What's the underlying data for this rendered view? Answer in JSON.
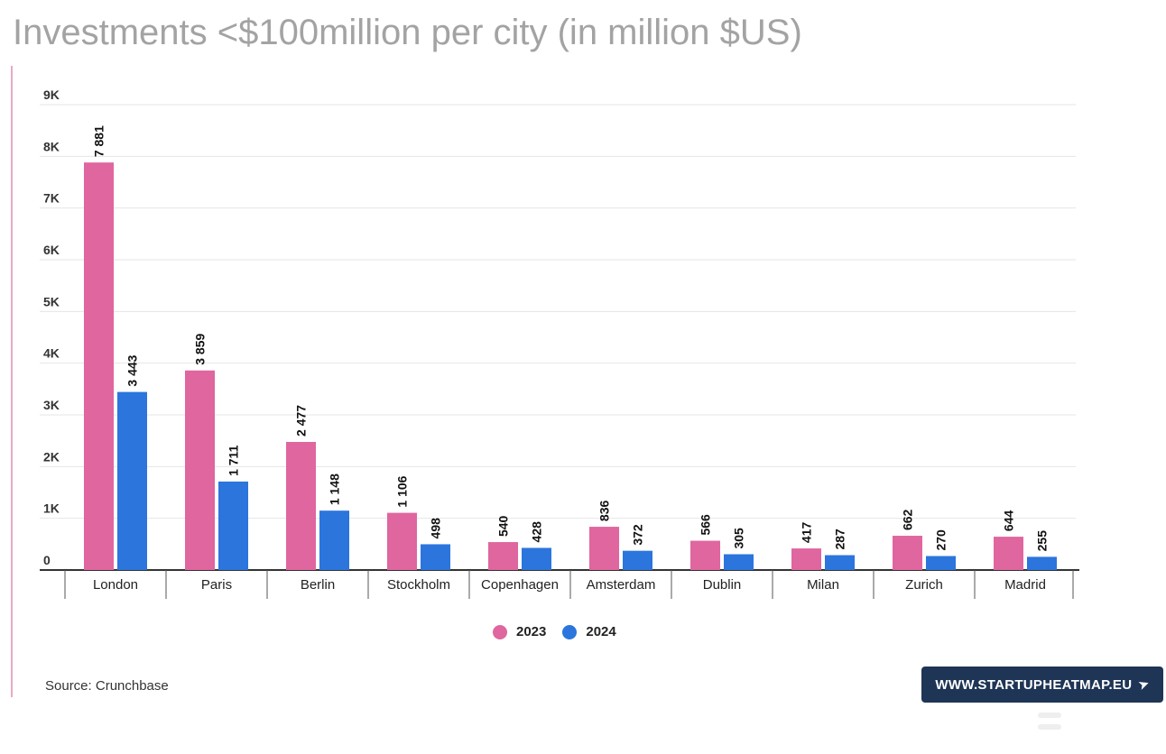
{
  "title": "Investments <$100million per city (in million $US)",
  "source": "Source: Crunchbase",
  "brand": "WWW.STARTUPHEATMAP.EU",
  "brand_icon": "cursor-arrow-icon",
  "colors": {
    "2023": "#df669f",
    "2024": "#2b75dd",
    "title": "#a3a3a3",
    "badge": "#1f3556"
  },
  "chart_data": {
    "type": "bar",
    "title": "Investments <$100million per city (in million $US)",
    "categories": [
      "London",
      "Paris",
      "Berlin",
      "Stockholm",
      "Copenhagen",
      "Amsterdam",
      "Dublin",
      "Milan",
      "Zurich",
      "Madrid"
    ],
    "series": [
      {
        "name": "2023",
        "values": [
          7881,
          3859,
          2477,
          1106,
          540,
          836,
          566,
          417,
          662,
          644
        ],
        "labels": [
          "7 881",
          "3 859",
          "2 477",
          "1 106",
          "540",
          "836",
          "566",
          "417",
          "662",
          "644"
        ]
      },
      {
        "name": "2024",
        "values": [
          3443,
          1711,
          1148,
          498,
          428,
          372,
          305,
          287,
          270,
          255
        ],
        "labels": [
          "3 443",
          "1 711",
          "1 148",
          "498",
          "428",
          "372",
          "305",
          "287",
          "270",
          "255"
        ]
      }
    ],
    "yticks": [
      "0",
      "1K",
      "2K",
      "3K",
      "4K",
      "5K",
      "6K",
      "7K",
      "8K",
      "9K"
    ],
    "ylim": [
      0,
      9000
    ],
    "grid": true,
    "legend": "bottom-center"
  }
}
